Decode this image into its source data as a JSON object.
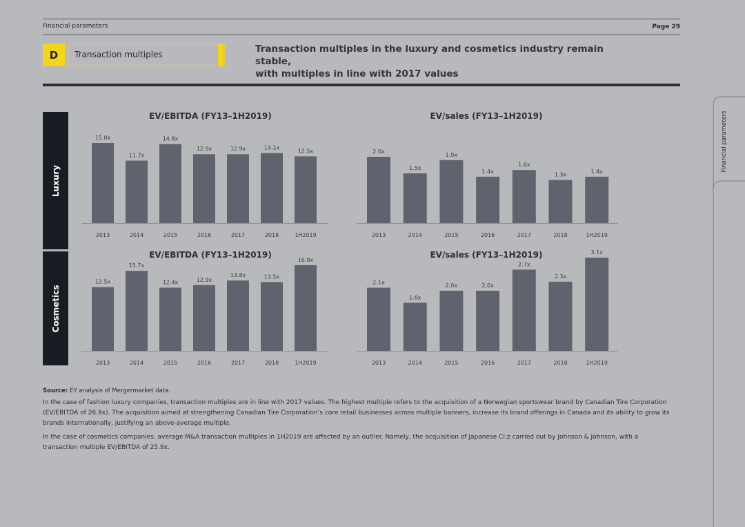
{
  "header": {
    "section": "Financial parameters",
    "page": "Page 29"
  },
  "section_badge": {
    "letter": "D",
    "label": "Transaction multiples"
  },
  "headline": {
    "line1": "Transaction multiples in the luxury and cosmetics industry remain stable,",
    "line2": "with multiples in line with 2017 values"
  },
  "rows": {
    "luxury": "Luxury",
    "cosmetics": "Cosmetics"
  },
  "side_tab": "Financial parameters",
  "colors": {
    "bar": "#60636d",
    "axis": "#8e9097"
  },
  "chart_data": [
    {
      "type": "bar",
      "title": "EV/EBITDA (FY13–1H2019)",
      "categories": [
        "2013",
        "2014",
        "2015",
        "2016",
        "2017",
        "2018",
        "1H2019"
      ],
      "values": [
        15.0,
        11.7,
        14.8,
        12.9,
        12.9,
        13.1,
        12.5
      ],
      "labels": [
        "15.0x",
        "11.7x",
        "14.8x",
        "12.9x",
        "12.9x",
        "13.1x",
        "12.5x"
      ]
    },
    {
      "type": "bar",
      "title": "EV/sales (FY13–1H2019)",
      "categories": [
        "2013",
        "2014",
        "2015",
        "2016",
        "2017",
        "2018",
        "1H2019"
      ],
      "values": [
        2.0,
        1.5,
        1.9,
        1.4,
        1.6,
        1.3,
        1.4
      ],
      "labels": [
        "2.0x",
        "1.5x",
        "1.9x",
        "1.4x",
        "1.6x",
        "1.3x",
        "1.4x"
      ]
    },
    {
      "type": "bar",
      "title": "EV/EBITDA (FY13–1H2019)",
      "categories": [
        "2013",
        "2014",
        "2015",
        "2016",
        "2017",
        "2018",
        "1H2019"
      ],
      "values": [
        12.5,
        15.7,
        12.4,
        12.9,
        13.8,
        13.5,
        16.8
      ],
      "labels": [
        "12.5x",
        "15.7x",
        "12.4x",
        "12.9x",
        "13.8x",
        "13.5x",
        "16.8x"
      ]
    },
    {
      "type": "bar",
      "title": "EV/sales (FY13–1H2019)",
      "categories": [
        "2013",
        "2014",
        "2015",
        "2016",
        "2017",
        "2018",
        "1H2019"
      ],
      "values": [
        2.1,
        1.6,
        2.0,
        2.0,
        2.7,
        2.3,
        3.1
      ],
      "labels": [
        "2.1x",
        "1.6x",
        "2.0x",
        "2.0x",
        "2.7x",
        "2.3x",
        "3.1x"
      ]
    }
  ],
  "source": {
    "label": "Source:",
    "text": "EY analysis of Mergermarket data."
  },
  "paragraphs": [
    "In the case of fashion luxury companies, transaction multiples are in line with 2017 values. The highest multiple refers to the acquisition of a Norwegian sportswear brand by Canadian Tire Corporation (EV/EBITDA of 26.9x). The acquisition aimed at strengthening Canadian Tire Corporation’s core retail businesses across multiple banners, increase its brand offerings in Canada and its ability to grow its brands internationally, justifying an above-average multiple.",
    "In the case of cosmetics companies, average M&A transaction multiples in 1H2019 are affected by an outlier. Namely, the acquisition of Japanese Ci:z carried out by Johnson & Johnson, with a transaction multiple EV/EBITDA of 25.9x."
  ]
}
